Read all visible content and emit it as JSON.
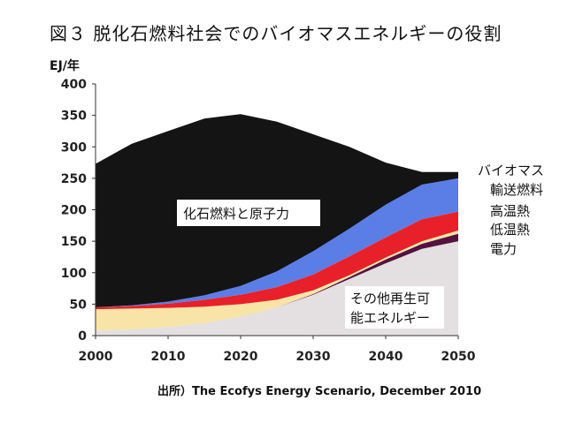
{
  "title": "図３ 脱化石燃料社会でのバイオマスエネルギーの役割",
  "unit_label": "EJ/年",
  "source": "出所）The Ecofys Energy Scenario, December 2010",
  "chart_data": {
    "type": "area",
    "title": "図３ 脱化石燃料社会でのバイオマスエネルギーの役割",
    "xlabel": "",
    "ylabel": "EJ/年",
    "x": [
      2000,
      2005,
      2010,
      2015,
      2020,
      2025,
      2030,
      2035,
      2040,
      2045,
      2050
    ],
    "xticks": [
      "2000",
      "2010",
      "2020",
      "2030",
      "2040",
      "2050"
    ],
    "yticks": [
      "0",
      "50",
      "100",
      "150",
      "200",
      "250",
      "300",
      "350",
      "400"
    ],
    "xlim": [
      2000,
      2050
    ],
    "ylim": [
      0,
      400
    ],
    "grid": false,
    "stacked": true,
    "series": [
      {
        "name": "その他再生可能エネルギー",
        "values": [
          8,
          10,
          14,
          20,
          30,
          45,
          65,
          90,
          115,
          138,
          150
        ],
        "color": "#e4dfe0"
      },
      {
        "name": "電力",
        "values": [
          0,
          0,
          0,
          0,
          0,
          0,
          1,
          3,
          6,
          8,
          12
        ],
        "color": "#55113f"
      },
      {
        "name": "低温熱",
        "values": [
          34,
          33,
          30,
          26,
          20,
          12,
          6,
          3,
          3,
          4,
          5
        ],
        "color": "#f7e4a6"
      },
      {
        "name": "高温熱",
        "values": [
          3,
          4,
          7,
          11,
          15,
          20,
          25,
          30,
          32,
          35,
          30
        ],
        "color": "#e8202a"
      },
      {
        "name": "輸送燃料",
        "values": [
          0,
          1,
          3,
          7,
          14,
          25,
          37,
          44,
          52,
          55,
          53
        ],
        "color": "#5b7de6"
      },
      {
        "name": "化石燃料と原子力",
        "values": [
          228,
          257,
          271,
          281,
          273,
          238,
          186,
          130,
          67,
          20,
          10
        ],
        "color": "#141414"
      }
    ],
    "annotations": [
      {
        "text": "化石燃料と原子力",
        "series": "化石燃料と原子力"
      },
      {
        "text": "その他再生可",
        "series": "その他再生可能エネルギー"
      },
      {
        "text": "能エネルギー",
        "series": "その他再生可能エネルギー"
      }
    ],
    "legend": {
      "heading": "バイオマス",
      "entries": [
        "輸送燃料",
        "高温熱",
        "低温熱",
        "電力"
      ],
      "placement": "right"
    }
  }
}
